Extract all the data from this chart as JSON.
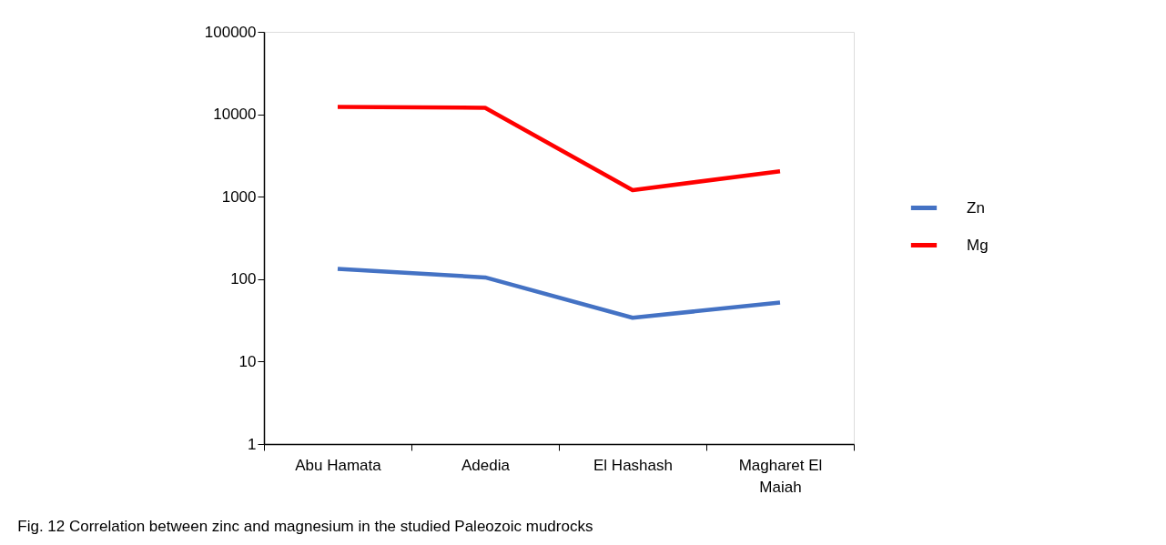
{
  "chart_data": {
    "type": "line",
    "categories": [
      "Abu Hamata",
      "Adedia",
      "El Hashash",
      "Magharet El Maiah"
    ],
    "series": [
      {
        "name": "Zn",
        "color": "#4472c4",
        "values": [
          133,
          105,
          34,
          52
        ]
      },
      {
        "name": "Mg",
        "color": "#ff0000",
        "values": [
          12300,
          12000,
          1200,
          2040
        ]
      }
    ],
    "log": true,
    "ylim": [
      1,
      100000
    ],
    "yticks": [
      1,
      10,
      100,
      1000,
      10000,
      100000
    ],
    "grid": false,
    "legend": "right",
    "marker": "none",
    "line_style": "solid",
    "annotations": [
      "Fig. 12 Correlation between zinc and magnesium in the studied Paleozoic mudrocks"
    ]
  }
}
